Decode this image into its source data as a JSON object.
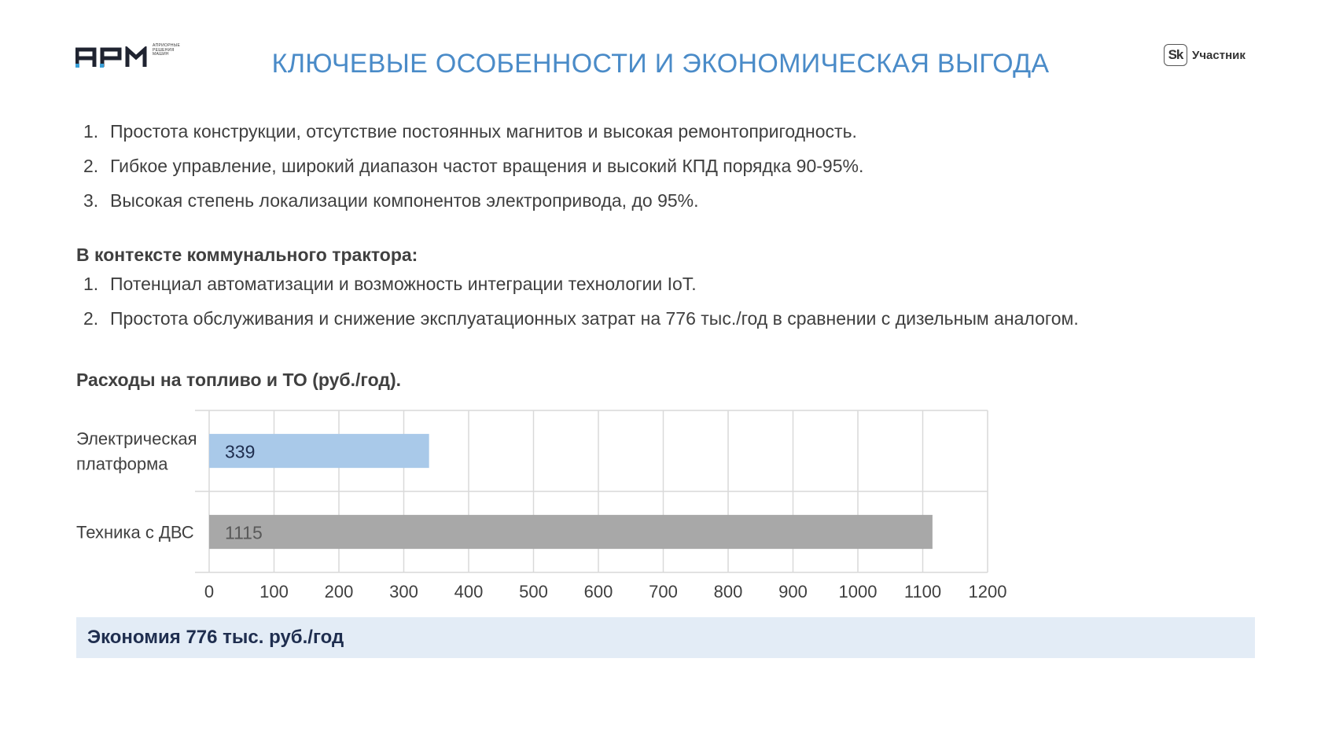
{
  "header": {
    "logo_text": "АРМ",
    "logo_sub": [
      "АПРИОРНЫЕ",
      "РЕШЕНИЯ",
      "МАШИН"
    ],
    "title": "КЛЮЧЕВЫЕ ОСОБЕННОСТИ И ЭКОНОМИЧЕСКАЯ ВЫГОДА",
    "badge_mark": "Sk",
    "badge_label": "Участник"
  },
  "features": [
    {
      "num": "1.",
      "text": "Простота конструкции, отсутствие постоянных магнитов и высокая ремонтопригодность."
    },
    {
      "num": "2.",
      "text": "Гибкое управление, широкий диапазон частот вращения и высокий КПД порядка 90-95%."
    },
    {
      "num": "3.",
      "text": "Высокая степень локализации компонентов электропривода, до 95%."
    }
  ],
  "context": {
    "heading": "В контексте  коммунального трактора:",
    "items": [
      {
        "num": "1.",
        "text": "Потенциал автоматизации и возможность интеграции технологии IoT."
      },
      {
        "num": "2.",
        "text": "Простота обслуживания и снижение эксплуатационных затрат на 776 тыс./год в сравнении с дизельным аналогом."
      }
    ]
  },
  "chart_title": "Расходы на топливо и ТО (руб./год).",
  "chart_data": {
    "type": "bar",
    "orientation": "horizontal",
    "categories": [
      [
        "Электрическая",
        "платформа"
      ],
      [
        "Техника с ДВС"
      ]
    ],
    "values": [
      339,
      1115
    ],
    "data_labels": [
      "339",
      "1115"
    ],
    "bar_colors": [
      "#a9c9e9",
      "#a8a8a8"
    ],
    "xlim": [
      0,
      1200
    ],
    "xticks": [
      0,
      100,
      200,
      300,
      400,
      500,
      600,
      700,
      800,
      900,
      1000,
      1100,
      1200
    ],
    "grid": true,
    "legend": "none"
  },
  "savings_text": "Экономия 776 тыс. руб./год"
}
